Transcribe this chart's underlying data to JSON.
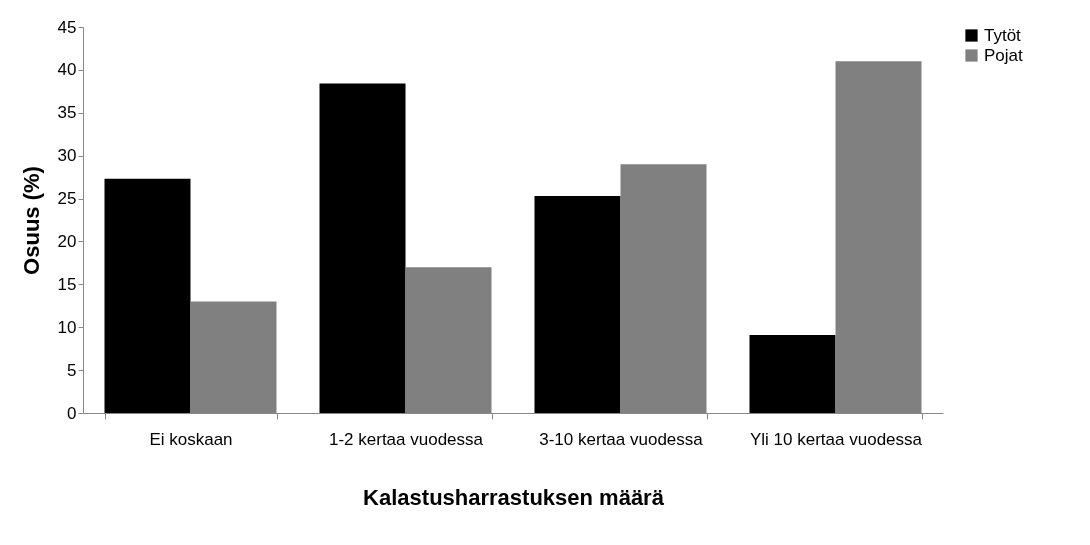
{
  "chart_data": {
    "type": "bar",
    "xlabel": "Kalastusharrastuksen määrä",
    "ylabel": "Osuus (%)",
    "categories": [
      "Ei koskaan",
      "1-2 kertaa vuodessa",
      "3-10 kertaa vuodessa",
      "Yli 10 kertaa vuodessa"
    ],
    "series": [
      {
        "name": "Tytöt",
        "color": "#000000",
        "values": [
          27.3,
          38.4,
          25.3,
          9.1
        ]
      },
      {
        "name": "Pojat",
        "color": "#808080",
        "values": [
          13,
          17,
          29,
          41
        ]
      }
    ],
    "ylim": [
      0,
      45
    ],
    "yticks": [
      0,
      5,
      10,
      15,
      20,
      25,
      30,
      35,
      40,
      45
    ],
    "grid": false,
    "legend": "right"
  }
}
